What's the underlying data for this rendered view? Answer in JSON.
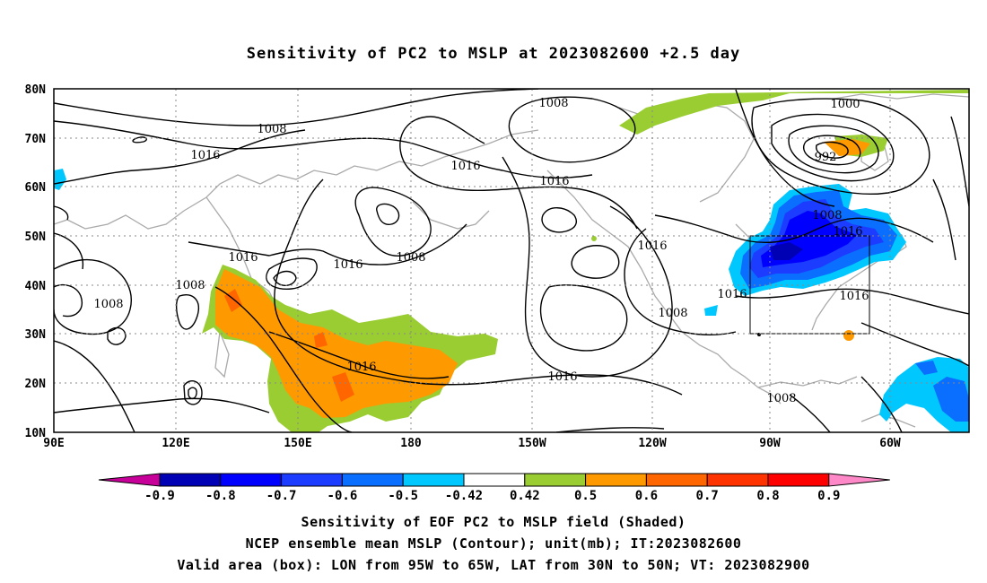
{
  "title": "Sensitivity of PC2 to MSLP at 2023082600 +2.5 day",
  "axes": {
    "lat_labels": [
      "80N",
      "70N",
      "60N",
      "50N",
      "40N",
      "30N",
      "20N",
      "10N"
    ],
    "lon_labels": [
      "90E",
      "120E",
      "150E",
      "180",
      "150W",
      "120W",
      "90W",
      "60W"
    ],
    "lon_range": [
      "90E",
      "45W"
    ],
    "lat_range": [
      "10N",
      "80N"
    ],
    "grid": "dotted"
  },
  "contour_labels": [
    "1008",
    "1016",
    "1008",
    "1016",
    "1016",
    "1016",
    "1000",
    "992",
    "1008",
    "1016",
    "1016",
    "1008",
    "1016",
    "1016",
    "1008",
    "1016",
    "1016",
    "1016",
    "1008",
    "1008",
    "1008"
  ],
  "colorbar": {
    "ticks": [
      "-0.9",
      "-0.8",
      "-0.7",
      "-0.6",
      "-0.5",
      "-0.42",
      "0.42",
      "0.5",
      "0.6",
      "0.7",
      "0.8",
      "0.9"
    ],
    "colors": [
      "#c8009a",
      "#0000b4",
      "#0000ff",
      "#1c3cff",
      "#0a6eff",
      "#00c8ff",
      "#ffffff",
      "#9acd32",
      "#ff9900",
      "#ff6600",
      "#ff3300",
      "#ff0000",
      "#ff88c8"
    ]
  },
  "box": {
    "lon": [
      "95W",
      "65W"
    ],
    "lat": [
      "30N",
      "50N"
    ]
  },
  "footer": {
    "line1": "Sensitivity of EOF PC2 to MSLP field (Shaded)",
    "line2": "NCEP ensemble mean MSLP (Contour); unit(mb); IT:2023082600",
    "line3": "Valid area (box): LON from 95W to 65W, LAT from 30N to 50N; VT: 2023082900"
  }
}
